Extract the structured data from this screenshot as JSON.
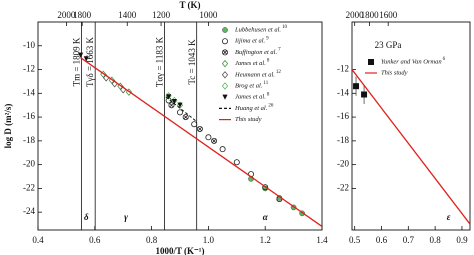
{
  "chart_data": [
    {
      "type": "scatter",
      "xlabel": "1000/T (K⁻¹)",
      "ylabel": "log D (m²/s)",
      "top_label": "T (K)",
      "top_ticks": [
        2000,
        1800,
        1400,
        1200,
        1000
      ],
      "xlim": [
        0.4,
        1.4
      ],
      "xticks": [
        0.4,
        0.6,
        0.8,
        {
          "value": 1,
          "label": "1.0"
        },
        1.2,
        1.4
      ],
      "ylim": [
        -25.5,
        -8
      ],
      "yticks": [
        -10,
        -12,
        -14,
        -16,
        -18,
        -20,
        -22,
        -24
      ],
      "boundaries": [
        {
          "T": 1809,
          "label": "Tm = 1809 K"
        },
        {
          "T": 1663,
          "label": "Tγδ = 1663 K"
        },
        {
          "T": 1183,
          "label": "Tαγ = 1183 K"
        },
        {
          "T": 1043,
          "label": "Tc = 1043 K"
        }
      ],
      "phases": [
        "δ",
        "γ",
        "α"
      ],
      "legend": "upper right",
      "series": [
        {
          "name": "Lubbehusen et al.",
          "ref": "10",
          "marker": "circle-filled",
          "color": "#5cb85c",
          "x": [
            1.15,
            1.2,
            1.25,
            1.3,
            1.33
          ],
          "values": [
            -21.2,
            -22.0,
            -22.8,
            -23.6,
            -24.1
          ]
        },
        {
          "name": "Iijima et al.",
          "ref": "9",
          "marker": "circle-open",
          "color": "#222",
          "x": [
            0.86,
            0.9,
            0.95,
            1.0,
            1.05,
            1.1,
            1.15,
            1.2,
            1.25
          ],
          "values": [
            -14.6,
            -15.6,
            -16.6,
            -17.7,
            -18.7,
            -19.8,
            -20.8,
            -21.9,
            -22.9
          ]
        },
        {
          "name": "Buffington et al.",
          "ref": "7",
          "marker": "circle-x",
          "color": "#222",
          "x": [
            0.87,
            0.92,
            0.97,
            1.02
          ],
          "values": [
            -15.0,
            -16.0,
            -17.0,
            -18.0
          ]
        },
        {
          "name": "James et al.",
          "ref": "8",
          "marker": "diamond-open",
          "color": "#3a9a3a",
          "x": [
            0.63,
            0.66,
            0.69,
            0.72
          ],
          "values": [
            -12.4,
            -12.9,
            -13.4,
            -13.9
          ]
        },
        {
          "name": "Heumann et al.",
          "ref": "12",
          "marker": "diamond-open",
          "color": "#555",
          "x": [
            0.64,
            0.67,
            0.7
          ],
          "values": [
            -12.7,
            -13.2,
            -13.7
          ]
        },
        {
          "name": "Brog et al.",
          "ref": "11",
          "marker": "diamond-open",
          "color": "#5cb85c",
          "x": [
            0.86,
            0.88,
            0.9
          ],
          "values": [
            -14.2,
            -14.6,
            -15.0
          ]
        },
        {
          "name": "James et al.",
          "ref": "8",
          "marker": "triangle-down",
          "color": "#111",
          "x": [
            0.55,
            0.57,
            0.86,
            0.88,
            0.9
          ],
          "values": [
            -10.8,
            -11.1,
            -14.3,
            -14.7,
            -15.0
          ]
        },
        {
          "name": "Huang et al.",
          "ref": "26",
          "marker": "line-dashed",
          "color": "#111",
          "x": [
            0.85,
            0.96
          ],
          "values": [
            -14.3,
            -16.4
          ]
        },
        {
          "name": "This study",
          "marker": "line-solid",
          "color": "#e0201b",
          "x": [
            0.55,
            1.4
          ],
          "values": [
            -11.0,
            -25.2
          ]
        }
      ]
    },
    {
      "type": "scatter",
      "top_ticks": [
        2000,
        1800,
        1600
      ],
      "xlim": [
        0.49,
        0.93
      ],
      "xticks": [
        0.5,
        0.6,
        0.7,
        0.8,
        0.9
      ],
      "ylim": [
        -25.5,
        -8
      ],
      "yticks": [
        -12,
        -14,
        -16,
        -18,
        -20,
        -22
      ],
      "annotation": "23 GPa",
      "phases": [
        "ε"
      ],
      "legend": "upper right",
      "series": [
        {
          "name": "Yunker and Van Orman",
          "ref": "6",
          "marker": "square-filled",
          "color": "#111",
          "x": [
            0.505,
            0.535
          ],
          "values": [
            -13.4,
            -14.1
          ],
          "errors": [
            0.8,
            0.8
          ]
        },
        {
          "name": "This study",
          "marker": "line-solid",
          "color": "#e0201b",
          "x": [
            0.49,
            0.93
          ],
          "values": [
            -12.0,
            -25.0
          ]
        }
      ]
    }
  ]
}
